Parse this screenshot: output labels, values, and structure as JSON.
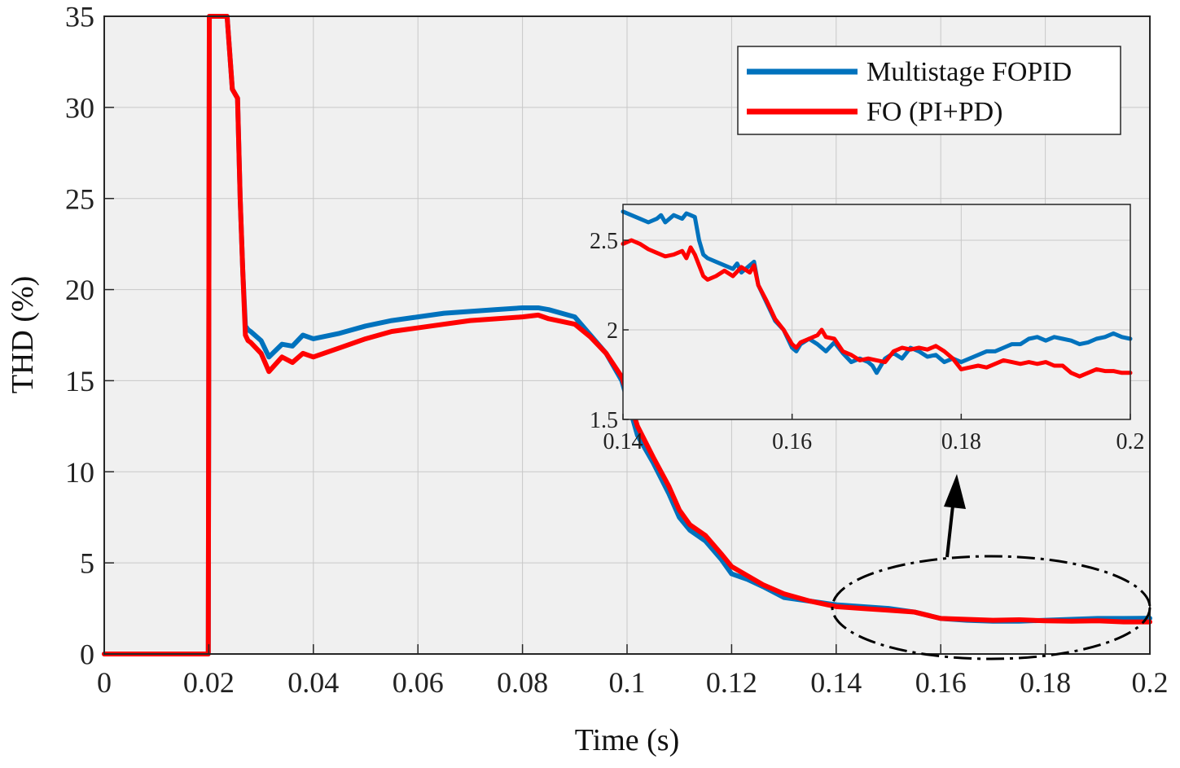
{
  "chart_data": [
    {
      "type": "line",
      "role": "main",
      "title": "",
      "xlabel": "Time (s)",
      "ylabel": "THD (%)",
      "xlim": [
        0,
        0.2
      ],
      "ylim": [
        0,
        35
      ],
      "xticks": [
        0,
        0.02,
        0.04,
        0.06,
        0.08,
        0.1,
        0.12,
        0.14,
        0.16,
        0.18,
        0.2
      ],
      "xtick_labels": [
        "0",
        "0.02",
        "0.04",
        "0.06",
        "0.08",
        "0.1",
        "0.12",
        "0.14",
        "0.16",
        "0.18",
        "0.2"
      ],
      "yticks": [
        0,
        5,
        10,
        15,
        20,
        25,
        30,
        35
      ],
      "ytick_labels": [
        "0",
        "5",
        "10",
        "15",
        "20",
        "25",
        "30",
        "35"
      ],
      "grid": true,
      "legend_position": "top-right",
      "series": [
        {
          "name": "Multistage FOPID",
          "color": "#0072BD",
          "x": [
            0,
            0.0199,
            0.0201,
            0.0235,
            0.0245,
            0.0255,
            0.026,
            0.0265,
            0.027,
            0.0275,
            0.028,
            0.03,
            0.0315,
            0.034,
            0.036,
            0.038,
            0.04,
            0.045,
            0.05,
            0.055,
            0.06,
            0.065,
            0.07,
            0.075,
            0.08,
            0.083,
            0.085,
            0.09,
            0.093,
            0.096,
            0.099,
            0.1,
            0.102,
            0.105,
            0.108,
            0.11,
            0.112,
            0.115,
            0.118,
            0.12,
            0.123,
            0.126,
            0.13,
            0.135,
            0.14,
            0.145,
            0.15,
            0.155,
            0.16,
            0.165,
            0.17,
            0.175,
            0.18,
            0.185,
            0.19,
            0.195,
            0.2
          ],
          "values": [
            0,
            0,
            35,
            35,
            31,
            30.5,
            25,
            21,
            18,
            17.8,
            17.7,
            17.2,
            16.3,
            17,
            16.9,
            17.5,
            17.3,
            17.6,
            18,
            18.3,
            18.5,
            18.7,
            18.8,
            18.9,
            19,
            19,
            18.9,
            18.5,
            17.5,
            16.5,
            15,
            14,
            12,
            10.5,
            8.8,
            7.5,
            6.8,
            6.2,
            5.2,
            4.4,
            4.1,
            3.7,
            3.1,
            2.9,
            2.7,
            2.6,
            2.5,
            2.3,
            1.95,
            1.85,
            1.8,
            1.8,
            1.85,
            1.9,
            1.95,
            1.95,
            1.96
          ]
        },
        {
          "name": "FO (PI+PD)",
          "color": "#FF0000",
          "x": [
            0,
            0.0199,
            0.0201,
            0.0235,
            0.0245,
            0.0255,
            0.026,
            0.0265,
            0.027,
            0.0275,
            0.028,
            0.03,
            0.0315,
            0.034,
            0.036,
            0.038,
            0.04,
            0.045,
            0.05,
            0.055,
            0.06,
            0.065,
            0.07,
            0.075,
            0.08,
            0.083,
            0.085,
            0.09,
            0.093,
            0.096,
            0.099,
            0.1,
            0.102,
            0.105,
            0.108,
            0.11,
            0.112,
            0.115,
            0.118,
            0.12,
            0.123,
            0.126,
            0.13,
            0.135,
            0.14,
            0.145,
            0.15,
            0.155,
            0.16,
            0.165,
            0.17,
            0.175,
            0.18,
            0.185,
            0.19,
            0.195,
            0.2
          ],
          "values": [
            0,
            0,
            35,
            35,
            31,
            30.5,
            25,
            21,
            17.5,
            17.2,
            17.1,
            16.5,
            15.5,
            16.3,
            16,
            16.5,
            16.3,
            16.8,
            17.3,
            17.7,
            17.9,
            18.1,
            18.3,
            18.4,
            18.5,
            18.6,
            18.4,
            18.1,
            17.4,
            16.5,
            15.2,
            14.3,
            12.5,
            10.8,
            9.2,
            7.9,
            7.1,
            6.5,
            5.5,
            4.8,
            4.3,
            3.8,
            3.3,
            2.9,
            2.6,
            2.5,
            2.4,
            2.3,
            1.95,
            1.9,
            1.85,
            1.88,
            1.82,
            1.8,
            1.82,
            1.76,
            1.76
          ]
        }
      ]
    },
    {
      "type": "line",
      "role": "inset",
      "title": "",
      "xlabel": "",
      "ylabel": "",
      "xlim": [
        0.14,
        0.2
      ],
      "ylim": [
        1.5,
        2.7
      ],
      "xticks": [
        0.14,
        0.16,
        0.18,
        0.2
      ],
      "xtick_labels": [
        "0.14",
        "0.16",
        "0.18",
        "0.2"
      ],
      "yticks": [
        1.5,
        2,
        2.5
      ],
      "ytick_labels": [
        "1.5",
        "2",
        "2.5"
      ],
      "grid": true,
      "series": [
        {
          "name": "Multistage FOPID",
          "color": "#0072BD",
          "x": [
            0.14,
            0.141,
            0.142,
            0.143,
            0.144,
            0.1445,
            0.145,
            0.146,
            0.147,
            0.1475,
            0.148,
            0.1485,
            0.149,
            0.1495,
            0.15,
            0.151,
            0.152,
            0.153,
            0.1535,
            0.154,
            0.155,
            0.1555,
            0.156,
            0.157,
            0.158,
            0.159,
            0.16,
            0.1605,
            0.161,
            0.162,
            0.163,
            0.164,
            0.165,
            0.166,
            0.167,
            0.168,
            0.169,
            0.1695,
            0.17,
            0.171,
            0.172,
            0.173,
            0.174,
            0.175,
            0.176,
            0.177,
            0.178,
            0.179,
            0.18,
            0.181,
            0.182,
            0.183,
            0.184,
            0.185,
            0.186,
            0.187,
            0.188,
            0.189,
            0.19,
            0.191,
            0.192,
            0.193,
            0.194,
            0.195,
            0.196,
            0.197,
            0.198,
            0.199,
            0.2
          ],
          "values": [
            2.66,
            2.64,
            2.62,
            2.6,
            2.62,
            2.64,
            2.6,
            2.64,
            2.62,
            2.65,
            2.64,
            2.63,
            2.5,
            2.42,
            2.4,
            2.38,
            2.36,
            2.34,
            2.37,
            2.32,
            2.36,
            2.38,
            2.25,
            2.15,
            2.05,
            2,
            1.9,
            1.88,
            1.92,
            1.95,
            1.92,
            1.88,
            1.93,
            1.87,
            1.82,
            1.84,
            1.82,
            1.8,
            1.76,
            1.84,
            1.87,
            1.84,
            1.9,
            1.88,
            1.85,
            1.86,
            1.82,
            1.84,
            1.82,
            1.84,
            1.86,
            1.88,
            1.88,
            1.9,
            1.92,
            1.92,
            1.95,
            1.96,
            1.94,
            1.96,
            1.95,
            1.94,
            1.92,
            1.93,
            1.95,
            1.96,
            1.98,
            1.96,
            1.95
          ]
        },
        {
          "name": "FO (PI+PD)",
          "color": "#FF0000",
          "x": [
            0.14,
            0.141,
            0.142,
            0.143,
            0.144,
            0.145,
            0.146,
            0.147,
            0.1475,
            0.148,
            0.1485,
            0.149,
            0.1495,
            0.15,
            0.151,
            0.152,
            0.153,
            0.154,
            0.155,
            0.1555,
            0.156,
            0.157,
            0.158,
            0.159,
            0.16,
            0.1605,
            0.161,
            0.162,
            0.163,
            0.1635,
            0.164,
            0.165,
            0.166,
            0.167,
            0.168,
            0.169,
            0.17,
            0.171,
            0.172,
            0.173,
            0.174,
            0.175,
            0.176,
            0.177,
            0.178,
            0.179,
            0.18,
            0.181,
            0.182,
            0.183,
            0.184,
            0.185,
            0.186,
            0.187,
            0.188,
            0.189,
            0.19,
            0.191,
            0.192,
            0.193,
            0.194,
            0.195,
            0.196,
            0.197,
            0.198,
            0.199,
            0.2
          ],
          "values": [
            2.48,
            2.5,
            2.48,
            2.45,
            2.43,
            2.41,
            2.42,
            2.44,
            2.4,
            2.46,
            2.42,
            2.36,
            2.3,
            2.28,
            2.3,
            2.33,
            2.3,
            2.35,
            2.32,
            2.36,
            2.25,
            2.16,
            2.06,
            2,
            1.92,
            1.9,
            1.93,
            1.95,
            1.97,
            2,
            1.96,
            1.95,
            1.88,
            1.86,
            1.83,
            1.84,
            1.83,
            1.82,
            1.88,
            1.9,
            1.89,
            1.9,
            1.89,
            1.91,
            1.88,
            1.84,
            1.78,
            1.79,
            1.8,
            1.79,
            1.81,
            1.83,
            1.82,
            1.81,
            1.82,
            1.81,
            1.82,
            1.8,
            1.8,
            1.76,
            1.74,
            1.76,
            1.78,
            1.77,
            1.77,
            1.76,
            1.76
          ]
        }
      ]
    }
  ]
}
